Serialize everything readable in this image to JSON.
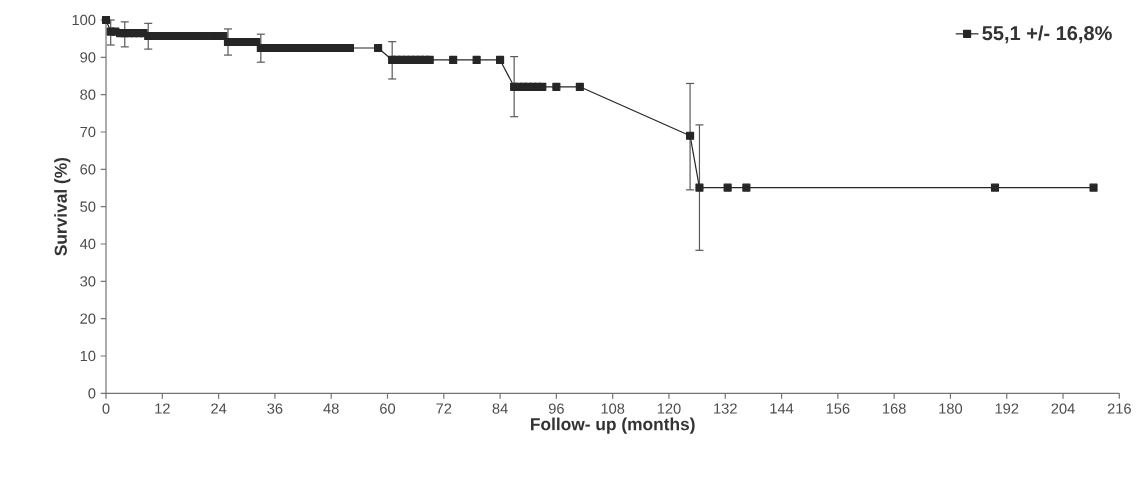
{
  "chart_data": {
    "type": "line",
    "xlabel": "Follow- up (months)",
    "ylabel": "Survival (%)",
    "x": [
      0,
      1,
      2,
      3,
      4,
      5,
      6,
      7,
      8,
      9,
      10,
      11,
      12,
      13,
      14,
      15,
      16,
      17,
      18,
      19,
      20,
      21,
      22,
      23,
      24,
      25,
      26,
      27,
      28,
      29,
      30,
      31,
      32,
      33,
      34,
      35,
      36,
      37,
      38,
      39,
      40,
      41,
      42,
      43,
      44,
      45,
      46,
      47,
      48,
      49,
      50,
      51,
      52,
      58,
      61,
      62,
      63,
      64,
      65,
      66,
      67,
      68,
      69,
      74,
      79,
      84,
      87,
      88,
      89,
      90,
      91,
      92,
      93,
      96,
      101,
      124.5,
      126.5,
      132.5,
      136.5,
      189.5,
      210.5
    ],
    "series": [
      {
        "name": "55,1 +/- 16,8%",
        "color": "#262626",
        "values": [
          100,
          96.9,
          96.9,
          96.5,
          96.5,
          96.5,
          96.5,
          96.5,
          96.5,
          95.7,
          95.7,
          95.7,
          95.7,
          95.7,
          95.7,
          95.7,
          95.7,
          95.7,
          95.7,
          95.7,
          95.7,
          95.7,
          95.7,
          95.7,
          95.7,
          95.7,
          94.1,
          94.1,
          94.1,
          94.1,
          94.1,
          94.1,
          94.1,
          92.5,
          92.5,
          92.5,
          92.5,
          92.5,
          92.5,
          92.5,
          92.5,
          92.5,
          92.5,
          92.5,
          92.5,
          92.5,
          92.5,
          92.5,
          92.5,
          92.5,
          92.5,
          92.5,
          92.5,
          92.5,
          89.3,
          89.3,
          89.3,
          89.3,
          89.3,
          89.3,
          89.3,
          89.3,
          89.3,
          89.3,
          89.3,
          89.3,
          82.1,
          82.1,
          82.1,
          82.1,
          82.1,
          82.1,
          82.1,
          82.1,
          82.1,
          69,
          55.1,
          55.1,
          55.1,
          55.1,
          55.1
        ],
        "errors": [
          null,
          [
            93.3,
            100
          ],
          null,
          null,
          [
            92.8,
            99.5
          ],
          null,
          null,
          null,
          null,
          [
            92.2,
            99.1
          ],
          null,
          null,
          null,
          null,
          null,
          null,
          null,
          null,
          null,
          null,
          null,
          null,
          null,
          null,
          null,
          null,
          [
            90.6,
            97.6
          ],
          null,
          null,
          null,
          null,
          null,
          null,
          [
            88.7,
            96.2
          ],
          null,
          null,
          null,
          null,
          null,
          null,
          null,
          null,
          null,
          null,
          null,
          null,
          null,
          null,
          null,
          null,
          null,
          null,
          null,
          null,
          [
            84.2,
            94.2
          ],
          null,
          null,
          null,
          null,
          null,
          null,
          null,
          null,
          null,
          null,
          null,
          [
            74.1,
            90.2
          ],
          null,
          null,
          null,
          null,
          null,
          null,
          null,
          null,
          [
            54.5,
            83
          ],
          [
            38.3,
            71.9
          ],
          null,
          null,
          null,
          null
        ]
      }
    ],
    "xlim": [
      0,
      216
    ],
    "xticks": [
      0,
      12,
      24,
      36,
      48,
      60,
      72,
      84,
      96,
      108,
      120,
      132,
      144,
      156,
      168,
      180,
      192,
      204,
      216
    ],
    "ylim": [
      0,
      100
    ],
    "yticks": [
      0,
      10,
      20,
      30,
      40,
      50,
      60,
      70,
      80,
      90,
      100
    ],
    "marker": "square",
    "line_style": "solid",
    "legend": "top right",
    "grid": false
  }
}
